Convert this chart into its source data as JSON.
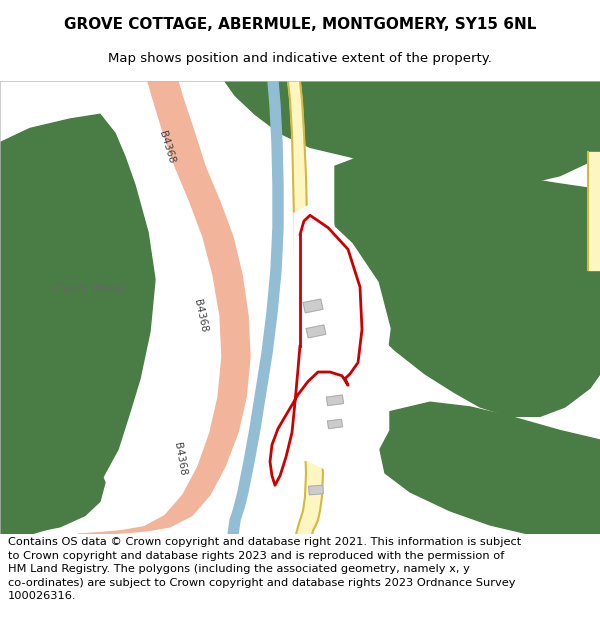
{
  "title": "GROVE COTTAGE, ABERMULE, MONTGOMERY, SY15 6NL",
  "subtitle": "Map shows position and indicative extent of the property.",
  "footer_line1": "Contains OS data © Crown copyright and database right 2021. This information is subject",
  "footer_line2": "to Crown copyright and database rights 2023 and is reproduced with the permission of",
  "footer_line3": "HM Land Registry. The polygons (including the associated geometry, namely x, y",
  "footer_line4": "co-ordinates) are subject to Crown copyright and database rights 2023 Ordnance Survey",
  "footer_line5": "100026316.",
  "green_color": "#4a7c45",
  "road_salmon": "#f2b49a",
  "river_blue": "#93bcd5",
  "yellow_line": "#d4b840",
  "yellow_fill": "#fdf6c0",
  "red_color": "#cc0000",
  "gray_bld": "#cccccc",
  "gray_bld_stroke": "#aaaaaa",
  "label_color": "#555555",
  "title_fontsize": 11,
  "subtitle_fontsize": 9.5,
  "footer_fontsize": 8.2,
  "road_label_fontsize": 7.5
}
